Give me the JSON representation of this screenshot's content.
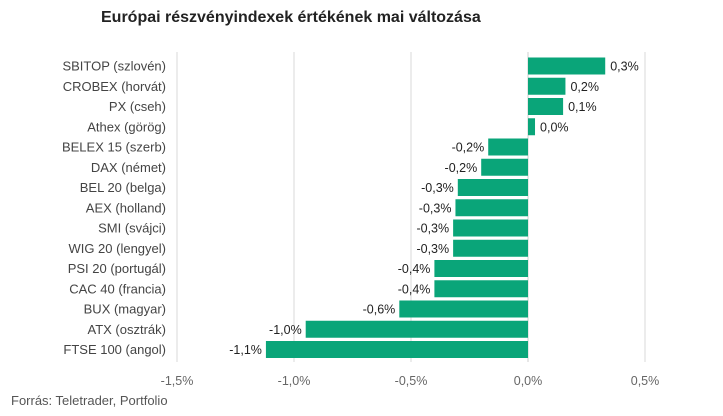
{
  "chart_data": {
    "type": "bar",
    "orientation": "horizontal",
    "title": "Európai részvényindexek értékének mai változása",
    "source": "Forrás: Teletrader, Portfolio",
    "categories": [
      "SBITOP (szlovén)",
      "CROBEX (horvát)",
      "PX (cseh)",
      "Athex (görög)",
      "BELEX 15 (szerb)",
      "DAX (német)",
      "BEL 20 (belga)",
      "AEX (holland)",
      "SMI (svájci)",
      "WIG 20 (lengyel)",
      "PSI 20 (portugál)",
      "CAC 40 (francia)",
      "BUX (magyar)",
      "ATX (osztrák)",
      "FTSE 100 (angol)"
    ],
    "values": [
      0.33,
      0.16,
      0.15,
      0.03,
      -0.17,
      -0.2,
      -0.3,
      -0.31,
      -0.32,
      -0.32,
      -0.4,
      -0.4,
      -0.55,
      -0.95,
      -1.12
    ],
    "value_labels": [
      "0,3%",
      "0,2%",
      "0,1%",
      "0,0%",
      "-0,2%",
      "-0,2%",
      "-0,3%",
      "-0,3%",
      "-0,3%",
      "-0,3%",
      "-0,4%",
      "-0,4%",
      "-0,6%",
      "-1,0%",
      "-1,1%"
    ],
    "xlim": [
      -1.5,
      0.5
    ],
    "ticks": [
      -1.5,
      -1.0,
      -0.5,
      0.0,
      0.5
    ],
    "tick_labels": [
      "-1,5%",
      "-1,0%",
      "-0,5%",
      "0,0%",
      "0,5%"
    ],
    "bar_color": "#0aa579",
    "grid": true,
    "legend": "none"
  }
}
